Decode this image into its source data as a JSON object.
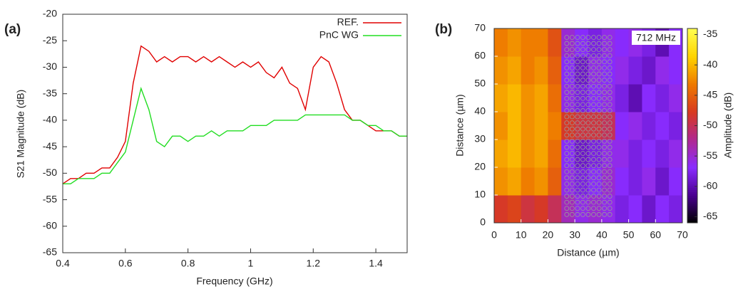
{
  "chart_data": [
    {
      "type": "line",
      "panel_label": "(a)",
      "x_label": "Frequency (GHz)",
      "y_label": "S21 Magnitude (dB)",
      "x": [
        0.4,
        0.425,
        0.45,
        0.475,
        0.5,
        0.525,
        0.55,
        0.575,
        0.6,
        0.625,
        0.65,
        0.675,
        0.7,
        0.725,
        0.75,
        0.775,
        0.8,
        0.825,
        0.85,
        0.875,
        0.9,
        0.925,
        0.95,
        0.975,
        1.0,
        1.025,
        1.05,
        1.075,
        1.1,
        1.125,
        1.15,
        1.175,
        1.2,
        1.225,
        1.25,
        1.275,
        1.3,
        1.325,
        1.35,
        1.375,
        1.4,
        1.425,
        1.45,
        1.475,
        1.5
      ],
      "series": [
        {
          "name": "REF.",
          "color": "#e00000",
          "values": [
            -52,
            -51,
            -51,
            -50,
            -50,
            -49,
            -49,
            -47,
            -44,
            -33,
            -26,
            -27,
            -29,
            -28,
            -29,
            -28,
            -28,
            -29,
            -28,
            -29,
            -28,
            -29,
            -30,
            -29,
            -30,
            -29,
            -31,
            -32,
            -30,
            -33,
            -34,
            -38,
            -30,
            -28,
            -29,
            -33,
            -38,
            -40,
            -40,
            -41,
            -42,
            -42,
            -42,
            -43,
            -43
          ]
        },
        {
          "name": "PnC WG",
          "color": "#22dd22",
          "values": [
            -52,
            -52,
            -51,
            -51,
            -51,
            -50,
            -50,
            -48,
            -46,
            -40,
            -34,
            -38,
            -44,
            -45,
            -43,
            -43,
            -44,
            -43,
            -43,
            -42,
            -43,
            -42,
            -42,
            -42,
            -41,
            -41,
            -41,
            -40,
            -40,
            -40,
            -40,
            -39,
            -39,
            -39,
            -39,
            -39,
            -39,
            -40,
            -40,
            -41,
            -41,
            -42,
            -42,
            -43,
            -43
          ]
        }
      ],
      "xlim": [
        0.4,
        1.5
      ],
      "xticks": [
        0.4,
        0.6,
        0.8,
        1,
        1.2,
        1.4
      ],
      "ylim": [
        -65,
        -20
      ],
      "yticks": [
        -65,
        -60,
        -55,
        -50,
        -45,
        -40,
        -35,
        -30,
        -25,
        -20
      ],
      "legend": "top-right"
    },
    {
      "type": "heatmap",
      "panel_label": "(b)",
      "title": "712 MHz",
      "x_label": "Distance (µm)",
      "y_label": "Distance (µm)",
      "colorbar_label": "Amplitude (dB)",
      "x": [
        2.5,
        7.5,
        12.5,
        17.5,
        22.5,
        27.5,
        32.5,
        37.5,
        42.5,
        47.5,
        52.5,
        57.5,
        62.5,
        67.5
      ],
      "y": [
        5,
        15,
        25,
        35,
        45,
        55,
        65
      ],
      "z": [
        [
          -48,
          -47,
          -49,
          -48,
          -50,
          -54,
          -56,
          -55,
          -56,
          -58,
          -57,
          -59,
          -57,
          -58
        ],
        [
          -42,
          -41,
          -43,
          -42,
          -45,
          -56,
          -58,
          -57,
          -55,
          -57,
          -58,
          -56,
          -59,
          -57
        ],
        [
          -41,
          -40,
          -42,
          -41,
          -44,
          -57,
          -59,
          -58,
          -56,
          -56,
          -58,
          -57,
          -58,
          -56
        ],
        [
          -42,
          -40,
          -42,
          -41,
          -43,
          -48,
          -49,
          -49,
          -50,
          -57,
          -56,
          -58,
          -57,
          -58
        ],
        [
          -41,
          -40,
          -42,
          -41,
          -44,
          -56,
          -58,
          -57,
          -56,
          -58,
          -60,
          -57,
          -58,
          -56
        ],
        [
          -42,
          -41,
          -43,
          -42,
          -45,
          -57,
          -59,
          -56,
          -57,
          -56,
          -58,
          -59,
          -56,
          -57
        ],
        [
          -43,
          -42,
          -43,
          -43,
          -46,
          -55,
          -57,
          -58,
          -56,
          -57,
          -56,
          -58,
          -60,
          -57
        ]
      ],
      "xlim": [
        0,
        70
      ],
      "xticks": [
        0,
        10,
        20,
        30,
        40,
        50,
        60,
        70
      ],
      "ylim": [
        0,
        70
      ],
      "yticks": [
        0,
        10,
        20,
        30,
        40,
        50,
        60,
        70
      ],
      "zlim": [
        -66,
        -34
      ],
      "zticks": [
        -65,
        -60,
        -55,
        -50,
        -45,
        -40,
        -35
      ],
      "colorscale": [
        "#000000",
        "#4a0090",
        "#8a2cff",
        "#b02890",
        "#d83a20",
        "#ee7a00",
        "#ffd400",
        "#ffff50"
      ]
    }
  ]
}
